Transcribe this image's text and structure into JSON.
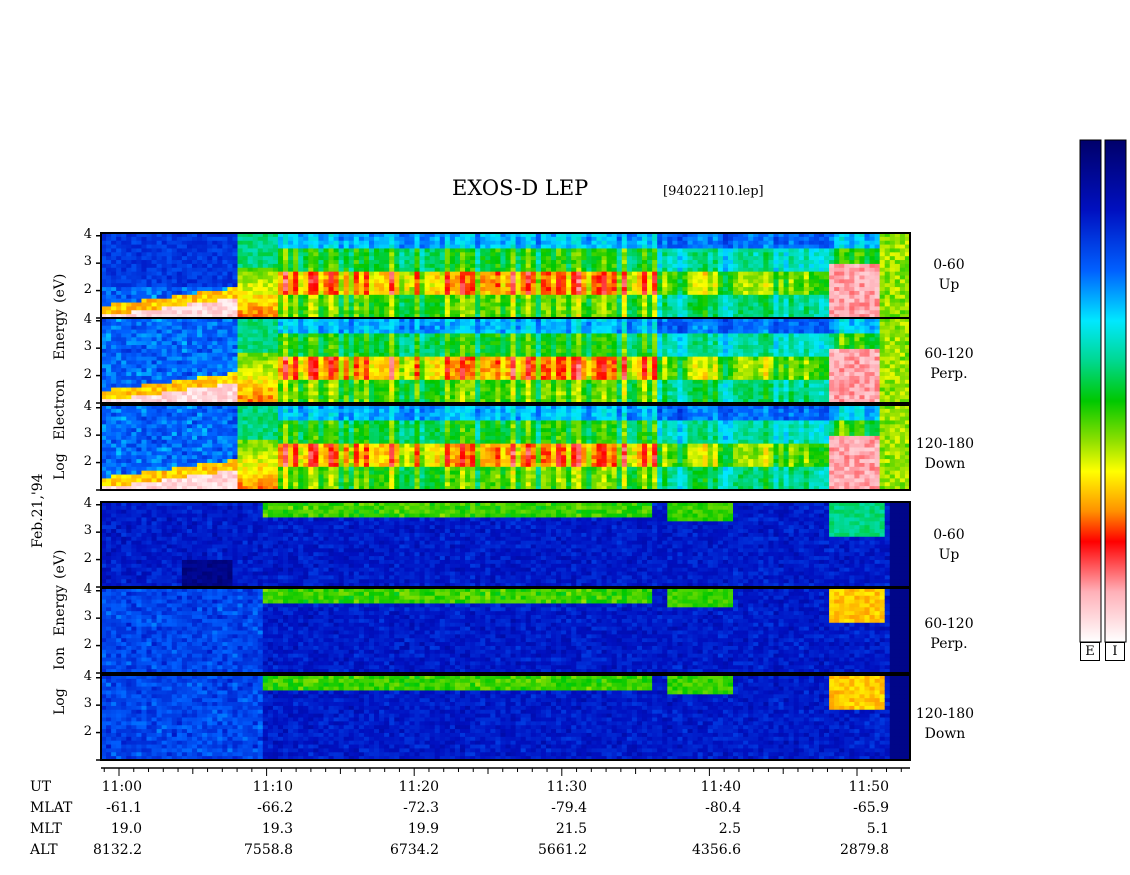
{
  "header": {
    "title": "EXOS-D LEP",
    "file": "[94022110.lep]"
  },
  "date_label": "Feb.21,'94",
  "electron_axis_label": [
    "Log",
    "Electron",
    "Energy",
    "(eV)"
  ],
  "ion_axis_label": [
    "Log",
    "Ion",
    "Energy",
    "(eV)"
  ],
  "colorbar": {
    "labels": [
      "E",
      "I"
    ]
  },
  "panel_labels": [
    {
      "range": "0-60",
      "dir": "Up"
    },
    {
      "range": "60-120",
      "dir": "Perp."
    },
    {
      "range": "120-180",
      "dir": "Down"
    },
    {
      "range": "0-60",
      "dir": "Up"
    },
    {
      "range": "60-120",
      "dir": "Perp."
    },
    {
      "range": "120-180",
      "dir": "Down"
    }
  ],
  "ephemeris": {
    "row_labels": [
      "UT",
      "MLAT",
      "MLT",
      "ALT"
    ],
    "ut": [
      "11:00",
      "11:10",
      "11:20",
      "11:30",
      "11:40",
      "11:50"
    ],
    "mlat": [
      "-61.1",
      "-66.2",
      "-72.3",
      "-79.4",
      "-80.4",
      "-65.9"
    ],
    "mlt": [
      "19.0",
      "19.3",
      "19.9",
      "21.5",
      "2.5",
      "5.1"
    ],
    "alt": [
      "8132.2",
      "7558.8",
      "6734.2",
      "5661.2",
      "4356.6",
      "2879.8"
    ]
  },
  "chart_data": {
    "type": "heatmap",
    "title": "EXOS-D LEP",
    "x_ticks_ut": [
      "11:00",
      "11:10",
      "11:20",
      "11:30",
      "11:40",
      "11:50"
    ],
    "y_ticks": [
      "2",
      "3",
      "4"
    ],
    "ylabel_electron": "Log Electron Energy (eV)",
    "ylabel_ion": "Log Ion Energy (eV)",
    "panels": [
      {
        "species": "electron",
        "pitch_angle": "0-60",
        "direction": "Up"
      },
      {
        "species": "electron",
        "pitch_angle": "60-120",
        "direction": "Perp."
      },
      {
        "species": "electron",
        "pitch_angle": "120-180",
        "direction": "Down"
      },
      {
        "species": "ion",
        "pitch_angle": "0-60",
        "direction": "Up"
      },
      {
        "species": "ion",
        "pitch_angle": "60-120",
        "direction": "Perp."
      },
      {
        "species": "ion",
        "pitch_angle": "120-180",
        "direction": "Down"
      }
    ],
    "colors": {
      "low": "#000078",
      "mid_low": "#00c8ff",
      "mid": "#00d000",
      "mid_high": "#ffff00",
      "high": "#ff0000",
      "max": "#ffffff"
    }
  }
}
